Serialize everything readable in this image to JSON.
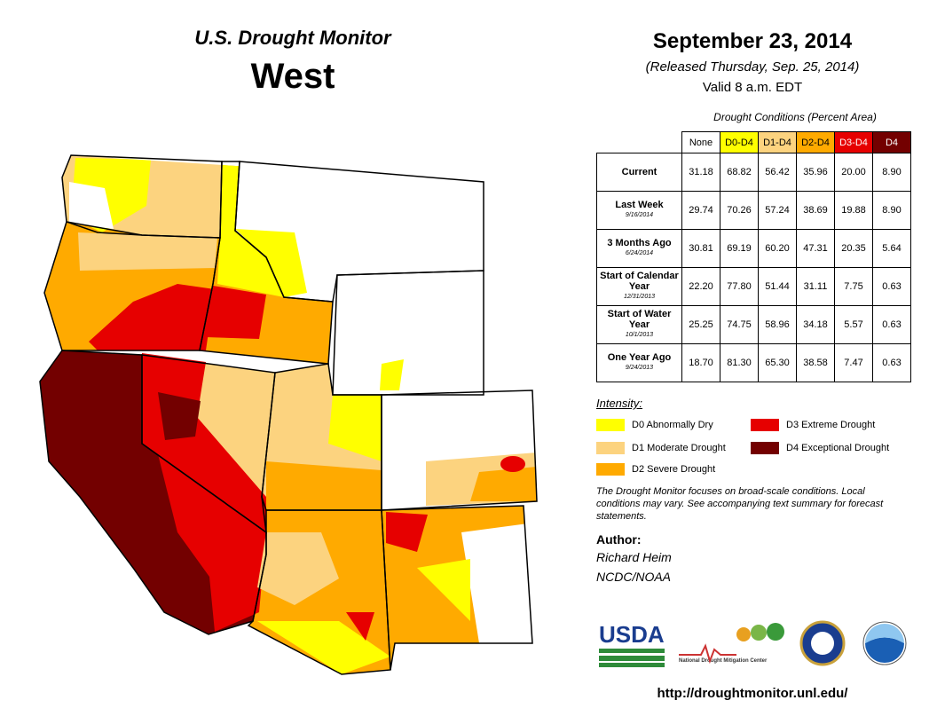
{
  "header": {
    "program": "U.S. Drought Monitor",
    "region": "West",
    "date": "September 23, 2014",
    "released": "(Released Thursday, Sep. 25, 2014)",
    "valid": "Valid  8 a.m. EDT"
  },
  "table": {
    "caption": "Drought Conditions (Percent Area)",
    "columns": [
      "None",
      "D0-D4",
      "D1-D4",
      "D2-D4",
      "D3-D4",
      "D4"
    ],
    "rows": [
      {
        "label": "Current",
        "values": [
          "31.18",
          "68.82",
          "56.42",
          "35.96",
          "20.00",
          "8.90"
        ]
      },
      {
        "label": "Last Week",
        "date": "9/16/2014",
        "values": [
          "29.74",
          "70.26",
          "57.24",
          "38.69",
          "19.88",
          "8.90"
        ]
      },
      {
        "label": "3 Months Ago",
        "date": "6/24/2014",
        "values": [
          "30.81",
          "69.19",
          "60.20",
          "47.31",
          "20.35",
          "5.64"
        ]
      },
      {
        "label": "Start of Calendar Year",
        "date": "12/31/2013",
        "values": [
          "22.20",
          "77.80",
          "51.44",
          "31.11",
          "7.75",
          "0.63"
        ]
      },
      {
        "label": "Start of Water Year",
        "date": "10/1/2013",
        "values": [
          "25.25",
          "74.75",
          "58.96",
          "34.18",
          "5.57",
          "0.63"
        ]
      },
      {
        "label": "One Year Ago",
        "date": "9/24/2013",
        "values": [
          "18.70",
          "81.30",
          "65.30",
          "38.58",
          "7.47",
          "0.63"
        ]
      }
    ]
  },
  "legend": {
    "title": "Intensity:",
    "items": [
      {
        "label": "D0 Abnormally Dry",
        "color": "#FFFF00"
      },
      {
        "label": "D1 Moderate Drought",
        "color": "#FCD37F"
      },
      {
        "label": "D2 Severe Drought",
        "color": "#FFAA00"
      },
      {
        "label": "D3 Extreme Drought",
        "color": "#E60000"
      },
      {
        "label": "D4 Exceptional Drought",
        "color": "#730000"
      }
    ]
  },
  "note": "The Drought Monitor focuses on broad-scale conditions. Local conditions may vary. See accompanying text summary for forecast statements.",
  "author": {
    "heading": "Author:",
    "name": "Richard Heim",
    "org": "NCDC/NOAA"
  },
  "logos": {
    "usda": "USDA",
    "ndmc": "National Drought Mitigation Center"
  },
  "url": "http://droughtmonitor.unl.edu/"
}
